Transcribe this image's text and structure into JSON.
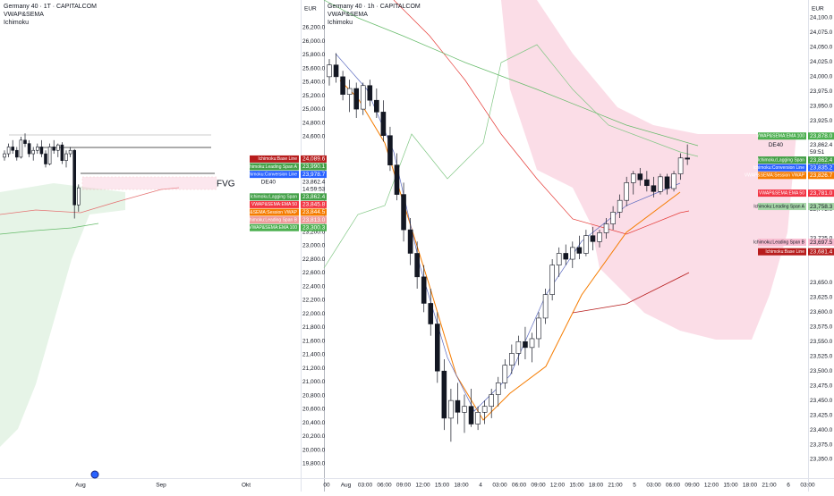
{
  "left_panel": {
    "title": "Germany 40 · 1T · CAPITALCOM",
    "indicators": [
      "VWAP&SEMA",
      "Ichimoku"
    ],
    "currency": "EUR",
    "annotation": "FVG",
    "ylim": [
      26200,
      19800
    ],
    "yticks": [
      {
        "value": 26200,
        "label": "26,200.0"
      },
      {
        "value": 26000,
        "label": "26,000.0"
      },
      {
        "value": 25800,
        "label": "25,800.0"
      },
      {
        "value": 25600,
        "label": "25,600.0"
      },
      {
        "value": 25400,
        "label": "25,400.0"
      },
      {
        "value": 25200,
        "label": "25,200.0"
      },
      {
        "value": 25000,
        "label": "25,000.0"
      },
      {
        "value": 24800,
        "label": "24,800.0"
      },
      {
        "value": 24600,
        "label": "24,600.0"
      },
      {
        "value": 23200,
        "label": "23,200.0"
      },
      {
        "value": 23000,
        "label": "23,000.0"
      },
      {
        "value": 22800,
        "label": "22,800.0"
      },
      {
        "value": 22600,
        "label": "22,600.0"
      },
      {
        "value": 22400,
        "label": "22,400.0"
      },
      {
        "value": 22200,
        "label": "22,200.0"
      },
      {
        "value": 22000,
        "label": "22,000.0"
      },
      {
        "value": 21800,
        "label": "21,800.0"
      },
      {
        "value": 21600,
        "label": "21,600.0"
      },
      {
        "value": 21400,
        "label": "21,400.0"
      },
      {
        "value": 21200,
        "label": "21,200.0"
      },
      {
        "value": 21000,
        "label": "21,000.0"
      },
      {
        "value": 20800,
        "label": "20,800.0"
      },
      {
        "value": 20600,
        "label": "20,600.0"
      },
      {
        "value": 20400,
        "label": "20,400.0"
      },
      {
        "value": 20200,
        "label": "20,200.0"
      },
      {
        "value": 20000,
        "label": "20,000.0"
      },
      {
        "value": 19800,
        "label": "19,800.0"
      }
    ],
    "xticks": [
      "Aug",
      "Sep",
      "Okt"
    ],
    "price_tags": [
      {
        "name": "Ichimoku:Base Line",
        "value": 24089.6,
        "label": "24,089.6",
        "color": "#b71c1c"
      },
      {
        "name": "Ichimoku:Leading Span A",
        "value": 23990.1,
        "label": "23,990.1",
        "color": "#43a047"
      },
      {
        "name": "Ichimoku:Conversion Line",
        "value": 23978.7,
        "label": "23,978.7",
        "color": "#2962ff"
      },
      {
        "name": "DE40",
        "value": 23862.4,
        "label": "23,862.4",
        "countdown": "14:59:53"
      },
      {
        "name": "Ichimoku:Lagging Span",
        "value": 23862.4,
        "label": "23,862.4",
        "color": "#43a047"
      },
      {
        "name": "VWAP&SEMA:EMA 50",
        "value": 23845.8,
        "label": "23,845.8",
        "color": "#f23645"
      },
      {
        "name": "VWAP&SEMA:Session VWAP",
        "value": 23844.5,
        "label": "23,844.5",
        "color": "#f57c00"
      },
      {
        "name": "Ichimoku:Leading Span B",
        "value": 23813.0,
        "label": "23,813.0",
        "color": "#ef9a9a"
      },
      {
        "name": "VWAP&SEMA:EMA 100",
        "value": 23300.3,
        "label": "23,300.3",
        "color": "#4caf50"
      }
    ],
    "candles": [
      [
        24300,
        24400,
        24250,
        24350
      ],
      [
        24350,
        24500,
        24300,
        24450
      ],
      [
        24450,
        24550,
        24350,
        24400
      ],
      [
        24400,
        24450,
        24250,
        24300
      ],
      [
        24300,
        24600,
        24280,
        24550
      ],
      [
        24550,
        24650,
        24450,
        24500
      ],
      [
        24500,
        24550,
        24300,
        24350
      ],
      [
        24350,
        24450,
        24250,
        24400
      ],
      [
        24400,
        24500,
        24350,
        24450
      ],
      [
        24450,
        24550,
        24300,
        24350
      ],
      [
        24350,
        24400,
        24150,
        24200
      ],
      [
        24200,
        24500,
        24180,
        24450
      ],
      [
        24450,
        24550,
        24350,
        24400
      ],
      [
        24400,
        24500,
        24300,
        24480
      ],
      [
        24480,
        24520,
        24200,
        24250
      ],
      [
        24250,
        24400,
        24150,
        24350
      ],
      [
        24350,
        24450,
        24300,
        24400
      ],
      [
        24400,
        24420,
        23400,
        23600
      ],
      [
        23600,
        23900,
        23500,
        23850
      ]
    ]
  },
  "right_panel": {
    "title": "Germany 40 · 1h · CAPITALCOM",
    "indicators": [
      "VWAP&SEMA",
      "Ichimoku"
    ],
    "currency": "EUR",
    "ylim": [
      24100,
      23350
    ],
    "yticks": [
      {
        "value": 24100,
        "label": "24,100.0"
      },
      {
        "value": 24075,
        "label": "24,075.0"
      },
      {
        "value": 24050,
        "label": "24,050.0"
      },
      {
        "value": 24025,
        "label": "24,025.0"
      },
      {
        "value": 24000,
        "label": "24,000.0"
      },
      {
        "value": 23975,
        "label": "23,975.0"
      },
      {
        "value": 23950,
        "label": "23,950.0"
      },
      {
        "value": 23925,
        "label": "23,925.0"
      },
      {
        "value": 23900,
        "label": "23,900.0"
      },
      {
        "value": 23850,
        "label": "23,850.0"
      },
      {
        "value": 23800,
        "label": "23,800.0"
      },
      {
        "value": 23775,
        "label": "23,775.0"
      },
      {
        "value": 23725,
        "label": "23,725.0"
      },
      {
        "value": 23700,
        "label": "23,700.0"
      },
      {
        "value": 23650,
        "label": "23,650.0"
      },
      {
        "value": 23625,
        "label": "23,625.0"
      },
      {
        "value": 23600,
        "label": "23,600.0"
      },
      {
        "value": 23575,
        "label": "23,575.0"
      },
      {
        "value": 23550,
        "label": "23,550.0"
      },
      {
        "value": 23525,
        "label": "23,525.0"
      },
      {
        "value": 23500,
        "label": "23,500.0"
      },
      {
        "value": 23475,
        "label": "23,475.0"
      },
      {
        "value": 23450,
        "label": "23,450.0"
      },
      {
        "value": 23425,
        "label": "23,425.0"
      },
      {
        "value": 23400,
        "label": "23,400.0"
      },
      {
        "value": 23375,
        "label": "23,375.0"
      },
      {
        "value": 23350,
        "label": "23,350.0"
      }
    ],
    "xticks": [
      "00",
      "Aug",
      "03:00",
      "06:00",
      "09:00",
      "12:00",
      "15:00",
      "18:00",
      "4",
      "03:00",
      "06:00",
      "09:00",
      "12:00",
      "15:00",
      "18:00",
      "21:00",
      "5",
      "03:00",
      "06:00",
      "09:00",
      "12:00",
      "15:00",
      "18:00",
      "21:00",
      "6",
      "03:00"
    ],
    "price_tags": [
      {
        "name": "VWAP&SEMA:EMA 100",
        "value": 23878.0,
        "label": "23,878.0",
        "color": "#4caf50"
      },
      {
        "name": "DE40",
        "value": 23862.4,
        "label": "23,862.4",
        "countdown": "59:51"
      },
      {
        "name": "Ichimoku:Lagging Span",
        "value": 23862.4,
        "label": "23,862.4",
        "color": "#43a047"
      },
      {
        "name": "Ichimoku:Conversion Line",
        "value": 23835.2,
        "label": "23,835.2",
        "color": "#2962ff"
      },
      {
        "name": "VWAP&SEMA:Session VWAP",
        "value": 23826.7,
        "label": "23,826.7",
        "color": "#f57c00"
      },
      {
        "name": "VWAP&SEMA:EMA 50",
        "value": 23781.0,
        "label": "23,781.0",
        "color": "#f23645"
      },
      {
        "name": "Ichimoku:Leading Span A",
        "value": 23758.3,
        "label": "23,758.3",
        "color": "#a5d6a7"
      },
      {
        "name": "Ichimoku:Leading Span B",
        "value": 23697.5,
        "label": "23,697.5",
        "color": "#f8bbd0"
      },
      {
        "name": "Ichimoku:Base Line",
        "value": 23681.4,
        "label": "23,681.4",
        "color": "#b71c1c"
      }
    ],
    "candles": [
      [
        24000,
        24030,
        23985,
        24020
      ],
      [
        24020,
        24040,
        23990,
        24000
      ],
      [
        24000,
        24010,
        23960,
        23970
      ],
      [
        23970,
        23995,
        23940,
        23980
      ],
      [
        23980,
        23990,
        23930,
        23945
      ],
      [
        23945,
        23990,
        23935,
        23985
      ],
      [
        23985,
        23995,
        23950,
        23960
      ],
      [
        23960,
        23980,
        23930,
        23940
      ],
      [
        23940,
        23960,
        23890,
        23900
      ],
      [
        23900,
        23915,
        23840,
        23850
      ],
      [
        23850,
        23870,
        23790,
        23800
      ],
      [
        23800,
        23820,
        23720,
        23740
      ],
      [
        23740,
        23760,
        23680,
        23700
      ],
      [
        23700,
        23720,
        23640,
        23660
      ],
      [
        23660,
        23680,
        23600,
        23615
      ],
      [
        23615,
        23640,
        23560,
        23580
      ],
      [
        23580,
        23600,
        23480,
        23500
      ],
      [
        23500,
        23520,
        23400,
        23420
      ],
      [
        23420,
        23470,
        23380,
        23450
      ],
      [
        23450,
        23480,
        23410,
        23430
      ],
      [
        23430,
        23460,
        23395,
        23440
      ],
      [
        23440,
        23470,
        23405,
        23410
      ],
      [
        23410,
        23440,
        23400,
        23430
      ],
      [
        23430,
        23450,
        23410,
        23440
      ],
      [
        23440,
        23470,
        23420,
        23460
      ],
      [
        23460,
        23490,
        23440,
        23480
      ],
      [
        23480,
        23520,
        23470,
        23510
      ],
      [
        23510,
        23545,
        23495,
        23530
      ],
      [
        23530,
        23560,
        23510,
        23550
      ],
      [
        23550,
        23575,
        23520,
        23540
      ],
      [
        23540,
        23565,
        23515,
        23555
      ],
      [
        23555,
        23600,
        23540,
        23590
      ],
      [
        23590,
        23640,
        23580,
        23630
      ],
      [
        23630,
        23690,
        23620,
        23680
      ],
      [
        23680,
        23710,
        23660,
        23700
      ],
      [
        23700,
        23715,
        23680,
        23690
      ],
      [
        23690,
        23720,
        23675,
        23710
      ],
      [
        23710,
        23730,
        23690,
        23700
      ],
      [
        23700,
        23740,
        23695,
        23730
      ],
      [
        23730,
        23745,
        23705,
        23720
      ],
      [
        23720,
        23740,
        23710,
        23735
      ],
      [
        23735,
        23760,
        23725,
        23750
      ],
      [
        23750,
        23780,
        23740,
        23770
      ],
      [
        23770,
        23800,
        23760,
        23790
      ],
      [
        23790,
        23830,
        23780,
        23820
      ],
      [
        23820,
        23840,
        23800,
        23835
      ],
      [
        23835,
        23845,
        23815,
        23825
      ],
      [
        23825,
        23840,
        23805,
        23815
      ],
      [
        23815,
        23830,
        23795,
        23805
      ],
      [
        23805,
        23835,
        23800,
        23830
      ],
      [
        23830,
        23835,
        23800,
        23810
      ],
      [
        23810,
        23840,
        23805,
        23835
      ],
      [
        23835,
        23870,
        23825,
        23862
      ],
      [
        23862,
        23885,
        23850,
        23860
      ]
    ]
  }
}
